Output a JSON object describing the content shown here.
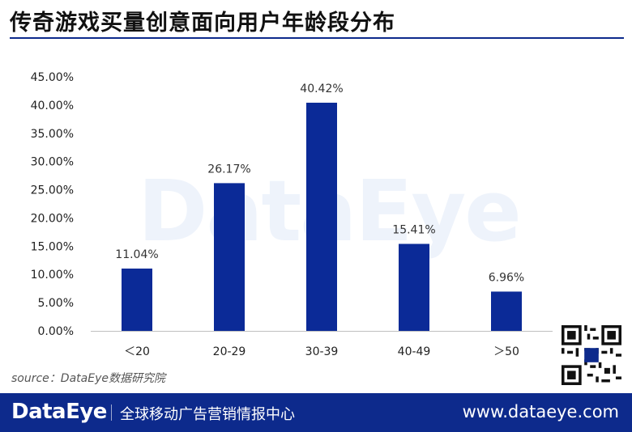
{
  "header": {
    "title": "传奇游戏买量创意面向用户年龄段分布"
  },
  "watermark": {
    "text": "DataEye"
  },
  "source": {
    "text": "source：DataEye数据研究院"
  },
  "footer": {
    "brand": "DataEye",
    "tagline": "全球移动广告营销情报中心",
    "website": "www.dataeye.com"
  },
  "colors": {
    "bar": "#0b2a97",
    "accent": "#0d2a8c"
  },
  "qr_icon": "qr-code-icon",
  "chart_data": {
    "type": "bar",
    "categories": [
      "<20",
      "20-29",
      "30-39",
      "40-49",
      ">50"
    ],
    "category_labels": [
      "＜20",
      "20-29",
      "30-39",
      "40-49",
      "＞50"
    ],
    "values": [
      11.04,
      26.17,
      40.42,
      15.41,
      6.96
    ],
    "value_labels": [
      "11.04%",
      "26.17%",
      "40.42%",
      "15.41%",
      "6.96%"
    ],
    "title": "传奇游戏买量创意面向用户年龄段分布",
    "xlabel": "",
    "ylabel": "",
    "ylim": [
      0,
      45
    ],
    "yticks": [
      0,
      5,
      10,
      15,
      20,
      25,
      30,
      35,
      40,
      45
    ],
    "ytick_labels": [
      "0.00%",
      "5.00%",
      "10.00%",
      "15.00%",
      "20.00%",
      "25.00%",
      "30.00%",
      "35.00%",
      "40.00%",
      "45.00%"
    ],
    "grid": false,
    "legend": "none"
  }
}
